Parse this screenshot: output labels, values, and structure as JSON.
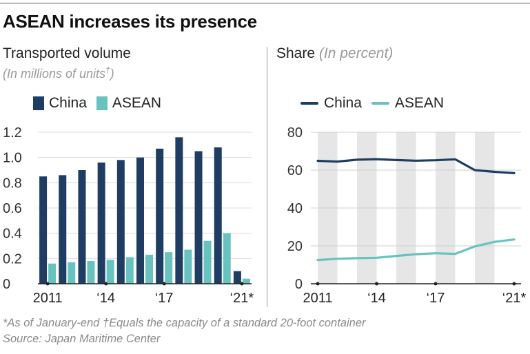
{
  "title": "ASEAN increases its presence",
  "left": {
    "title": "Transported volume",
    "subtitle": "(In millions of units",
    "subtitle_mark": "†",
    "subtitle_close": ")"
  },
  "right": {
    "title": "Share",
    "subtitle": "(In percent)"
  },
  "footnote": {
    "line1": "*As of January-end  †Equals the capacity of a standard 20-foot container",
    "line2": "Source: Japan Maritime Center"
  },
  "colors": {
    "china": "#1f3d63",
    "asean": "#67c2c0",
    "band": "#e6e6e6"
  },
  "chart_data": [
    {
      "type": "bar",
      "title": "Transported volume",
      "ylabel": "(In millions of units†)",
      "categories": [
        "2011",
        "2012",
        "2013",
        "2014",
        "2015",
        "2016",
        "2017",
        "2018",
        "2019",
        "2020",
        "2021*"
      ],
      "series": [
        {
          "name": "China",
          "values": [
            0.85,
            0.86,
            0.9,
            0.96,
            0.98,
            1.0,
            1.07,
            1.16,
            1.05,
            1.08,
            0.1
          ]
        },
        {
          "name": "ASEAN",
          "values": [
            0.16,
            0.17,
            0.18,
            0.19,
            0.21,
            0.23,
            0.25,
            0.27,
            0.34,
            0.4,
            0.04
          ]
        }
      ],
      "ylim": [
        0,
        1.2
      ],
      "yticks": [
        "0",
        "0.2",
        "0.4",
        "0.6",
        "0.8",
        "1.0",
        "1.2"
      ],
      "yticks_values": [
        0,
        0.2,
        0.4,
        0.6,
        0.8,
        1.0,
        1.2
      ],
      "xtick_labels": [
        {
          "index": 0,
          "label": "2011"
        },
        {
          "index": 3,
          "label": "‘14"
        },
        {
          "index": 6,
          "label": "‘17"
        },
        {
          "index": 10,
          "label": "‘21*"
        }
      ],
      "legend": [
        "China",
        "ASEAN"
      ],
      "grid": true
    },
    {
      "type": "line",
      "title": "Share",
      "ylabel": "(In percent)",
      "x": [
        "2011",
        "2012",
        "2013",
        "2014",
        "2015",
        "2016",
        "2017",
        "2018",
        "2019",
        "2020",
        "2021*"
      ],
      "series": [
        {
          "name": "China",
          "values": [
            64.9,
            64.5,
            65.5,
            65.8,
            65.3,
            65.0,
            65.2,
            65.7,
            60.0,
            59.1,
            58.4
          ]
        },
        {
          "name": "ASEAN",
          "values": [
            12.5,
            13.2,
            13.5,
            13.7,
            14.7,
            15.6,
            16.1,
            15.8,
            19.7,
            22.1,
            23.4
          ]
        }
      ],
      "ylim": [
        0,
        80
      ],
      "yticks": [
        "0",
        "20",
        "40",
        "60",
        "80"
      ],
      "yticks_values": [
        0,
        20,
        40,
        60,
        80
      ],
      "xtick_labels": [
        {
          "index": 0,
          "label": "2011"
        },
        {
          "index": 3,
          "label": "‘14"
        },
        {
          "index": 6,
          "label": "‘17"
        },
        {
          "index": 10,
          "label": "‘21*"
        }
      ],
      "shaded_years": [
        "2011",
        "2013",
        "2015",
        "2017",
        "2019"
      ],
      "legend": [
        "China",
        "ASEAN"
      ],
      "grid": true
    }
  ]
}
